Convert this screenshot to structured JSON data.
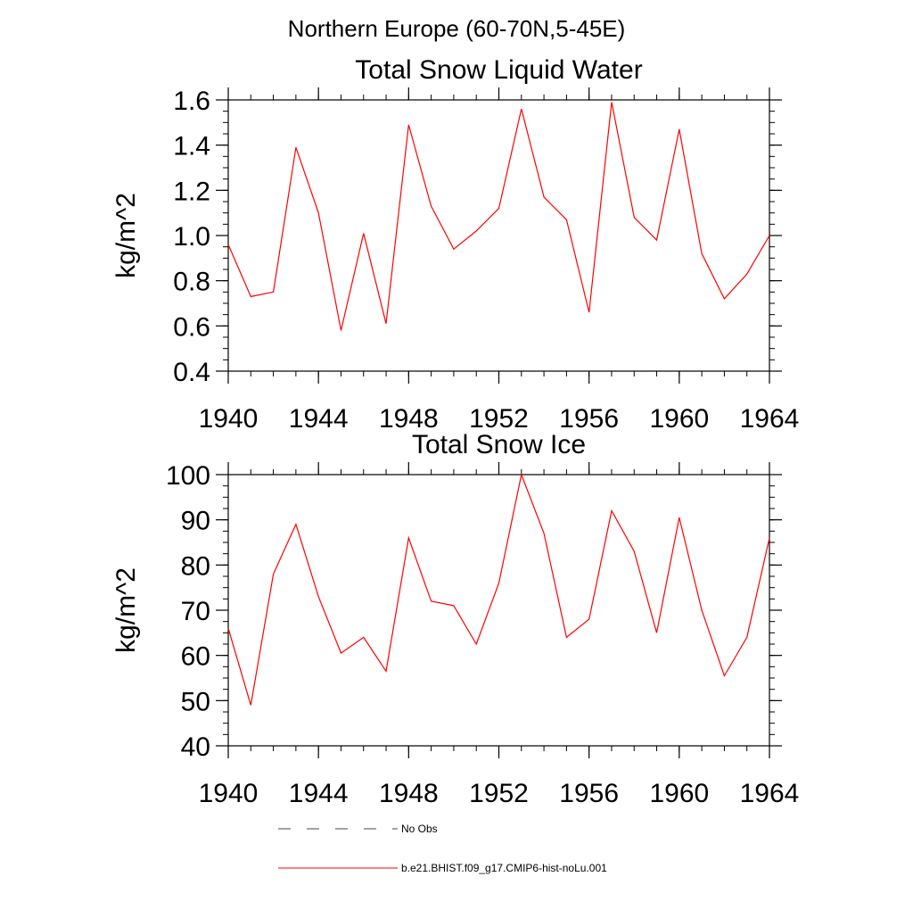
{
  "figure": {
    "suptitle": "Northern Europe (60-70N,5-45E)"
  },
  "chart_data": [
    {
      "type": "line",
      "title": "Total Snow Liquid Water",
      "xlabel": "",
      "ylabel": "kg/m^2",
      "xlim": [
        1940,
        1964
      ],
      "ylim": [
        0.4,
        1.6
      ],
      "x_major_ticks": [
        1940,
        1944,
        1948,
        1952,
        1956,
        1960,
        1964
      ],
      "y_major_ticks": [
        0.4,
        0.6,
        0.8,
        1.0,
        1.2,
        1.4,
        1.6
      ],
      "x_tick_labels": [
        "1940",
        "1944",
        "1948",
        "1952",
        "1956",
        "1960",
        "1964"
      ],
      "y_tick_labels": [
        "0.4",
        "0.6",
        "0.8",
        "1.0",
        "1.2",
        "1.4",
        "1.6"
      ],
      "grid": false,
      "x": [
        1940,
        1941,
        1942,
        1943,
        1944,
        1945,
        1946,
        1947,
        1948,
        1949,
        1950,
        1951,
        1952,
        1953,
        1954,
        1955,
        1956,
        1957,
        1958,
        1959,
        1960,
        1961,
        1962,
        1963,
        1964
      ],
      "series": [
        {
          "name": "b.e21.BHIST.f09_g17.CMIP6-hist-noLu.001",
          "color": "#ff0000",
          "values": [
            0.96,
            0.73,
            0.75,
            1.39,
            1.1,
            0.58,
            1.01,
            0.61,
            1.49,
            1.13,
            0.94,
            1.02,
            1.12,
            1.56,
            1.17,
            1.07,
            0.66,
            1.59,
            1.08,
            0.98,
            1.47,
            0.92,
            0.72,
            0.83,
            1.0
          ]
        }
      ]
    },
    {
      "type": "line",
      "title": "Total Snow Ice",
      "xlabel": "",
      "ylabel": "kg/m^2",
      "xlim": [
        1940,
        1964
      ],
      "ylim": [
        40,
        100
      ],
      "x_major_ticks": [
        1940,
        1944,
        1948,
        1952,
        1956,
        1960,
        1964
      ],
      "y_major_ticks": [
        40,
        50,
        60,
        70,
        80,
        90,
        100
      ],
      "x_tick_labels": [
        "1940",
        "1944",
        "1948",
        "1952",
        "1956",
        "1960",
        "1964"
      ],
      "y_tick_labels": [
        "40",
        "50",
        "60",
        "70",
        "80",
        "90",
        "100"
      ],
      "grid": false,
      "x": [
        1940,
        1941,
        1942,
        1943,
        1944,
        1945,
        1946,
        1947,
        1948,
        1949,
        1950,
        1951,
        1952,
        1953,
        1954,
        1955,
        1956,
        1957,
        1958,
        1959,
        1960,
        1961,
        1962,
        1963,
        1964
      ],
      "series": [
        {
          "name": "b.e21.BHIST.f09_g17.CMIP6-hist-noLu.001",
          "color": "#ff0000",
          "values": [
            66,
            49,
            78,
            89,
            73,
            60.5,
            64,
            56.5,
            86,
            72,
            71,
            62.5,
            76,
            100,
            87,
            64,
            68,
            92,
            83,
            65,
            90.5,
            70,
            55.5,
            64,
            86
          ]
        }
      ]
    }
  ],
  "legend": {
    "placement": "bottom",
    "entries": [
      {
        "label": "No Obs",
        "style": "dashed",
        "color": "#444466"
      },
      {
        "label": "b.e21.BHIST.f09_g17.CMIP6-hist-noLu.001",
        "style": "solid",
        "color": "#ff0000"
      }
    ]
  }
}
